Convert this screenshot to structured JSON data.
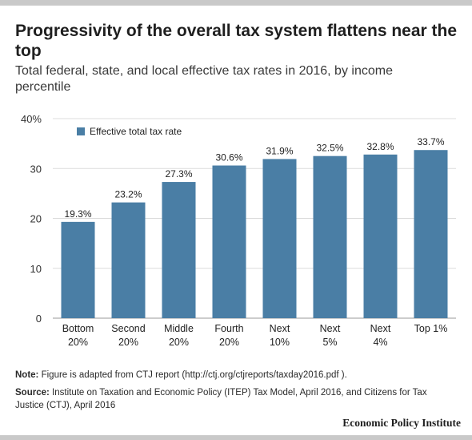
{
  "header": {
    "title": "Progressivity of the overall tax system flattens near the top",
    "subtitle": "Total federal, state, and local effective tax rates in 2016, by income percentile"
  },
  "chart_data": {
    "type": "bar",
    "categories": [
      [
        "Bottom",
        "20%"
      ],
      [
        "Second",
        "20%"
      ],
      [
        "Middle",
        "20%"
      ],
      [
        "Fourth",
        "20%"
      ],
      [
        "Next",
        "10%"
      ],
      [
        "Next",
        "5%"
      ],
      [
        "Next",
        "4%"
      ],
      [
        "Top 1%"
      ]
    ],
    "series": [
      {
        "name": "Effective total tax rate",
        "values": [
          19.3,
          23.2,
          27.3,
          30.6,
          31.9,
          32.5,
          32.8,
          33.7
        ],
        "labels": [
          "19.3%",
          "23.2%",
          "27.3%",
          "30.6%",
          "31.9%",
          "32.5%",
          "32.8%",
          "33.7%"
        ],
        "color": "#4a7ea5"
      }
    ],
    "ylim": [
      0,
      40
    ],
    "yticks": [
      0,
      10,
      20,
      30,
      40
    ],
    "ytick_labels": [
      "0",
      "10",
      "20",
      "30",
      "40%"
    ],
    "grid": true,
    "legend_position": "top-left",
    "xlabel": "",
    "ylabel": ""
  },
  "footer": {
    "note_label": "Note:",
    "note_text": "Figure is adapted from CTJ report (http://ctj.org/ctjreports/taxday2016.pdf ).",
    "source_label": "Source:",
    "source_text": "Institute on Taxation and Economic Policy (ITEP) Tax Model, April 2016, and Citizens for Tax Justice (CTJ), April 2016",
    "brand": "Economic Policy Institute"
  },
  "colors": {
    "bar": "#4a7ea5",
    "grid": "#dcdcdc",
    "frame": "#c9c9c9"
  }
}
